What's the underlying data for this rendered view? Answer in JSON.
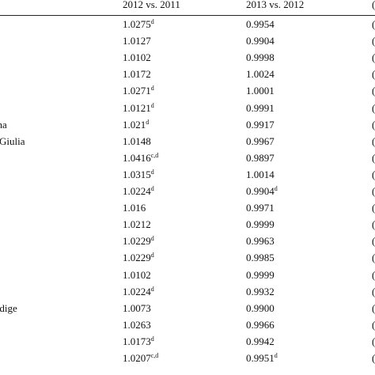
{
  "table": {
    "headers": [
      "",
      "2012 vs. 2011",
      "2013 vs. 2012",
      "("
    ],
    "rows": [
      {
        "label": "",
        "v1": "1.0275",
        "s1": "d",
        "v2": "0.9954",
        "s2": "",
        "v3": "("
      },
      {
        "label": "",
        "v1": "1.0127",
        "s1": "",
        "v2": "0.9904",
        "s2": "",
        "v3": "("
      },
      {
        "label": "",
        "v1": "1.0102",
        "s1": "",
        "v2": "0.9998",
        "s2": "",
        "v3": "("
      },
      {
        "label": "",
        "v1": "1.0172",
        "s1": "",
        "v2": "1.0024",
        "s2": "",
        "v3": "("
      },
      {
        "label": "",
        "v1": "1.0271",
        "s1": "d",
        "v2": "1.0001",
        "s2": "",
        "v3": "("
      },
      {
        "label": "",
        "v1": "1.0121",
        "s1": "d",
        "v2": "0.9991",
        "s2": "",
        "v3": "("
      },
      {
        "label": "gna",
        "v1": "1.021",
        "s1": "d",
        "v2": "0.9917",
        "s2": "",
        "v3": "("
      },
      {
        "label": "a Giulia",
        "v1": "1.0148",
        "s1": "",
        "v2": "0.9967",
        "s2": "",
        "v3": "("
      },
      {
        "label": "",
        "v1": "1.0416",
        "s1": "c,d",
        "v2": "0.9897",
        "s2": "",
        "v3": "("
      },
      {
        "label": "",
        "v1": "1.0315",
        "s1": "d",
        "v2": "1.0014",
        "s2": "",
        "v3": "("
      },
      {
        "label": "",
        "v1": "1.0224",
        "s1": "d",
        "v2": "0.9904",
        "s2": "d",
        "v3": "("
      },
      {
        "label": "",
        "v1": "1.016",
        "s1": "",
        "v2": "0.9971",
        "s2": "",
        "v3": "("
      },
      {
        "label": "",
        "v1": "1.0212",
        "s1": "",
        "v2": "0.9999",
        "s2": "",
        "v3": "("
      },
      {
        "label": "",
        "v1": "1.0229",
        "s1": "d",
        "v2": "0.9963",
        "s2": "",
        "v3": "("
      },
      {
        "label": "",
        "v1": "1.0229",
        "s1": "d",
        "v2": "0.9985",
        "s2": "",
        "v3": "("
      },
      {
        "label": "",
        "v1": "1.0102",
        "s1": "",
        "v2": "0.9999",
        "s2": "",
        "v3": "("
      },
      {
        "label": "",
        "v1": "1.0224",
        "s1": "d",
        "v2": "0.9932",
        "s2": "",
        "v3": "("
      },
      {
        "label": "Adige",
        "v1": "1.0073",
        "s1": "",
        "v2": "0.9900",
        "s2": "",
        "v3": "("
      },
      {
        "label": "",
        "v1": "1.0263",
        "s1": "",
        "v2": "0.9966",
        "s2": "",
        "v3": "("
      },
      {
        "label": "",
        "v1": "1.0173",
        "s1": "d",
        "v2": "0.9942",
        "s2": "",
        "v3": "("
      },
      {
        "label": "",
        "v1": "1.0207",
        "s1": "c,d",
        "v2": "0.9951",
        "s2": "d",
        "v3": "("
      }
    ]
  }
}
